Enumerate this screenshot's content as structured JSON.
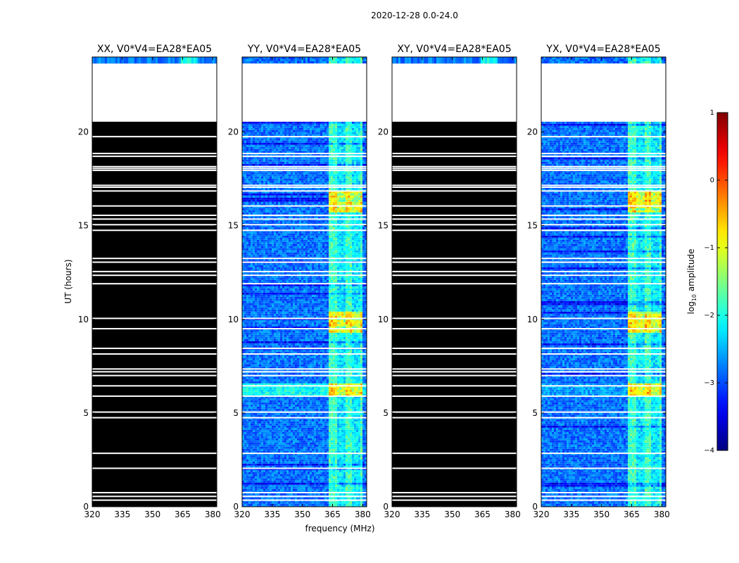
{
  "chart_data": {
    "type": "heatmap",
    "suptitle": "2020-12-28 0.0-24.0",
    "xlabel": "frequency (MHz)",
    "ylabel": "UT (hours)",
    "xlim": [
      320,
      382
    ],
    "ylim": [
      0,
      24
    ],
    "xticks": [
      "320",
      "335",
      "350",
      "365",
      "380"
    ],
    "yticks": [
      "0",
      "5",
      "10",
      "15",
      "20"
    ],
    "panels": [
      {
        "title": "XX, V0*V4=EA28*EA05",
        "mode": "flagged"
      },
      {
        "title": "YY, V0*V4=EA28*EA05",
        "mode": "data"
      },
      {
        "title": "XY, V0*V4=EA28*EA05",
        "mode": "flagged"
      },
      {
        "title": "YX, V0*V4=EA28*EA05",
        "mode": "data"
      }
    ],
    "no_data_hours": [
      20.55,
      23.65
    ],
    "flag_gaps_hours": [
      0.35,
      0.55,
      0.75,
      2.05,
      2.85,
      4.75,
      5.05,
      5.9,
      6.45,
      7.0,
      7.2,
      7.35,
      8.15,
      8.45,
      9.5,
      10.05,
      11.9,
      12.35,
      12.55,
      13.05,
      13.25,
      14.75,
      15.05,
      15.35,
      15.55,
      16.05,
      16.85,
      17.05,
      17.15,
      17.95,
      18.05,
      18.15,
      18.7,
      18.85,
      19.75
    ],
    "hot_band_mhz": [
      363.5,
      380
    ],
    "bright_bands_hours": [
      [
        5.9,
        6.6
      ],
      [
        9.3,
        10.4
      ],
      [
        15.7,
        16.8
      ]
    ],
    "colorbar": {
      "label": "log10 amplitude",
      "label_main": "log",
      "label_sub": "10",
      "label_rest": " amplitude",
      "range": [
        -4,
        1
      ],
      "ticks": [
        "1",
        "0",
        "−1",
        "−2",
        "−3",
        "−4"
      ],
      "colormap": "jet"
    }
  }
}
